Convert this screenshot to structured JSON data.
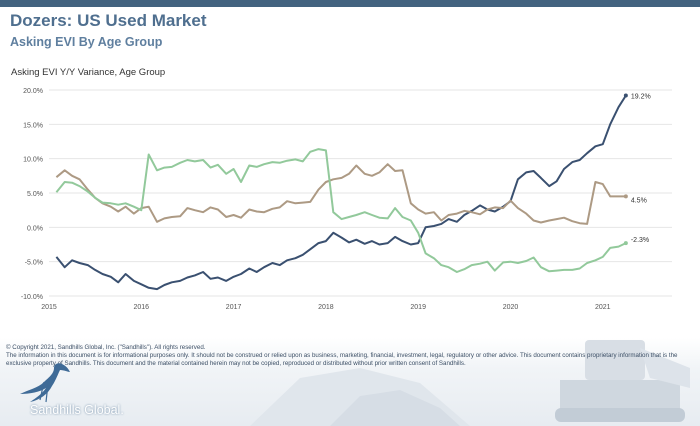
{
  "header": {
    "title": "Dozers:  US Used Market",
    "subtitle": "Asking EVI By Age Group"
  },
  "footer": {
    "copyright": "© Copyright 2021, Sandhills Global, Inc. (\"Sandhills\"). All rights reserved.",
    "disclaimer": "The information in this document is for informational purposes only.  It should not be construed or relied upon as business, marketing, financial, investment, legal, regulatory or other advice. This document contains proprietary information that is the exclusive property of Sandhills. This document and the material contained herein may not be copied, reproduced or distributed without prior written consent of Sandhills.",
    "logo_text": "Sandhills Global."
  },
  "colors": {
    "navy": "#3a5070",
    "tan": "#ad9a84",
    "green": "#92c99b",
    "grid": "#e6e6e6",
    "axis_text": "#555555",
    "header_bar": "#43637f"
  },
  "icons": {
    "logo": "crane-icon"
  },
  "chart_data": {
    "type": "line",
    "title": "Asking EVI Y/Y Variance, Age Group",
    "xlabel": "",
    "ylabel": "",
    "ylim": [
      -10,
      20
    ],
    "yticks": [
      -10,
      -5,
      0,
      5,
      10,
      15,
      20
    ],
    "ytick_labels": [
      "-10.0%",
      "-5.0%",
      "0.0%",
      "5.0%",
      "10.0%",
      "15.0%",
      "20.0%"
    ],
    "xlim": [
      2015.0,
      2021.75
    ],
    "xticks": [
      2015,
      2016,
      2017,
      2018,
      2019,
      2020,
      2021
    ],
    "xtick_labels": [
      "2015",
      "2016",
      "2017",
      "2018",
      "2019",
      "2020",
      "2021"
    ],
    "grid": "horizontal",
    "legend": "none",
    "series": [
      {
        "color": "#3a5070",
        "end_label": "19.2%",
        "x": [
          2015.08,
          2015.17,
          2015.25,
          2015.33,
          2015.42,
          2015.5,
          2015.58,
          2015.67,
          2015.75,
          2015.83,
          2015.92,
          2016.0,
          2016.08,
          2016.17,
          2016.25,
          2016.33,
          2016.42,
          2016.5,
          2016.58,
          2016.67,
          2016.75,
          2016.83,
          2016.92,
          2017.0,
          2017.08,
          2017.17,
          2017.25,
          2017.33,
          2017.42,
          2017.5,
          2017.58,
          2017.67,
          2017.75,
          2017.83,
          2017.92,
          2018.0,
          2018.08,
          2018.17,
          2018.25,
          2018.33,
          2018.42,
          2018.5,
          2018.58,
          2018.67,
          2018.75,
          2018.83,
          2018.92,
          2019.0,
          2019.08,
          2019.17,
          2019.25,
          2019.33,
          2019.42,
          2019.5,
          2019.58,
          2019.67,
          2019.75,
          2019.83,
          2019.92,
          2020.0,
          2020.08,
          2020.17,
          2020.25,
          2020.33,
          2020.42,
          2020.5,
          2020.58,
          2020.67,
          2020.75,
          2020.83,
          2020.92,
          2021.0,
          2021.08,
          2021.17,
          2021.25
        ],
        "y": [
          -4.3,
          -5.8,
          -4.8,
          -5.2,
          -5.5,
          -6.2,
          -6.8,
          -7.2,
          -8.0,
          -6.8,
          -7.8,
          -8.3,
          -8.8,
          -9.0,
          -8.4,
          -8.0,
          -7.8,
          -7.3,
          -7.0,
          -6.5,
          -7.5,
          -7.3,
          -7.8,
          -7.2,
          -6.8,
          -6.0,
          -6.5,
          -5.8,
          -5.2,
          -5.5,
          -4.8,
          -4.5,
          -4.0,
          -3.2,
          -2.3,
          -2.0,
          -0.8,
          -1.5,
          -2.2,
          -1.8,
          -2.4,
          -2.0,
          -2.5,
          -2.3,
          -1.4,
          -2.0,
          -2.5,
          -2.3,
          0.0,
          0.2,
          0.5,
          1.2,
          0.8,
          1.8,
          2.4,
          3.2,
          2.6,
          2.3,
          3.0,
          3.8,
          7.0,
          8.0,
          8.2,
          7.2,
          6.0,
          6.7,
          8.5,
          9.5,
          9.8,
          10.8,
          11.8,
          12.1,
          15.0,
          17.5,
          19.2
        ]
      },
      {
        "color": "#ad9a84",
        "end_label": "4.5%",
        "x": [
          2015.08,
          2015.17,
          2015.25,
          2015.33,
          2015.42,
          2015.5,
          2015.58,
          2015.67,
          2015.75,
          2015.83,
          2015.92,
          2016.0,
          2016.08,
          2016.17,
          2016.25,
          2016.33,
          2016.42,
          2016.5,
          2016.58,
          2016.67,
          2016.75,
          2016.83,
          2016.92,
          2017.0,
          2017.08,
          2017.17,
          2017.25,
          2017.33,
          2017.42,
          2017.5,
          2017.58,
          2017.67,
          2017.75,
          2017.83,
          2017.92,
          2018.0,
          2018.08,
          2018.17,
          2018.25,
          2018.33,
          2018.42,
          2018.5,
          2018.58,
          2018.67,
          2018.75,
          2018.83,
          2018.92,
          2019.0,
          2019.08,
          2019.17,
          2019.25,
          2019.33,
          2019.42,
          2019.5,
          2019.58,
          2019.67,
          2019.75,
          2019.83,
          2019.92,
          2020.0,
          2020.08,
          2020.17,
          2020.25,
          2020.33,
          2020.42,
          2020.5,
          2020.58,
          2020.67,
          2020.75,
          2020.83,
          2020.92,
          2021.0,
          2021.08,
          2021.17,
          2021.25
        ],
        "y": [
          7.3,
          8.3,
          7.5,
          7.0,
          5.5,
          4.3,
          3.5,
          3.0,
          2.3,
          3.0,
          2.0,
          2.8,
          3.0,
          0.8,
          1.3,
          1.5,
          1.6,
          2.8,
          2.5,
          2.2,
          2.9,
          2.6,
          1.5,
          1.8,
          1.4,
          2.6,
          2.3,
          2.2,
          2.7,
          2.9,
          3.8,
          3.5,
          3.6,
          3.7,
          5.5,
          6.6,
          7.0,
          7.2,
          7.8,
          9.0,
          7.8,
          7.5,
          8.0,
          9.2,
          8.2,
          8.3,
          3.5,
          2.6,
          2.0,
          2.2,
          1.0,
          1.8,
          2.0,
          2.4,
          2.2,
          1.9,
          2.6,
          2.9,
          2.8,
          3.9,
          2.8,
          2.0,
          1.0,
          0.7,
          1.0,
          1.2,
          1.4,
          0.9,
          0.6,
          0.5,
          6.6,
          6.3,
          4.5,
          4.5,
          4.5
        ]
      },
      {
        "color": "#92c99b",
        "end_label": "-2.3%",
        "x": [
          2015.08,
          2015.17,
          2015.25,
          2015.33,
          2015.42,
          2015.5,
          2015.58,
          2015.67,
          2015.75,
          2015.83,
          2015.92,
          2016.0,
          2016.08,
          2016.17,
          2016.25,
          2016.33,
          2016.42,
          2016.5,
          2016.58,
          2016.67,
          2016.75,
          2016.83,
          2016.92,
          2017.0,
          2017.08,
          2017.17,
          2017.25,
          2017.33,
          2017.42,
          2017.5,
          2017.58,
          2017.67,
          2017.75,
          2017.83,
          2017.92,
          2018.0,
          2018.08,
          2018.17,
          2018.25,
          2018.33,
          2018.42,
          2018.5,
          2018.58,
          2018.67,
          2018.75,
          2018.83,
          2018.92,
          2019.0,
          2019.08,
          2019.17,
          2019.25,
          2019.33,
          2019.42,
          2019.5,
          2019.58,
          2019.67,
          2019.75,
          2019.83,
          2019.92,
          2020.0,
          2020.08,
          2020.17,
          2020.25,
          2020.33,
          2020.42,
          2020.5,
          2020.58,
          2020.67,
          2020.75,
          2020.83,
          2020.92,
          2021.0,
          2021.08,
          2021.17,
          2021.25
        ],
        "y": [
          5.1,
          6.6,
          6.5,
          6.0,
          5.2,
          4.3,
          3.6,
          3.5,
          3.3,
          3.5,
          3.0,
          2.5,
          10.6,
          8.3,
          8.7,
          8.8,
          9.4,
          9.8,
          9.6,
          9.8,
          8.7,
          9.1,
          7.8,
          8.5,
          6.6,
          9.0,
          8.8,
          9.2,
          9.5,
          9.4,
          9.7,
          9.9,
          9.6,
          11.0,
          11.4,
          11.2,
          2.2,
          1.2,
          1.5,
          1.8,
          2.2,
          1.8,
          1.4,
          1.3,
          2.8,
          1.5,
          1.0,
          -0.8,
          -3.8,
          -4.5,
          -5.5,
          -5.8,
          -6.5,
          -6.1,
          -5.5,
          -5.3,
          -5.0,
          -6.3,
          -5.1,
          -5.0,
          -5.2,
          -4.9,
          -4.4,
          -5.8,
          -6.4,
          -6.3,
          -6.2,
          -6.2,
          -6.0,
          -5.2,
          -4.8,
          -4.3,
          -3.0,
          -2.8,
          -2.3
        ]
      }
    ]
  }
}
